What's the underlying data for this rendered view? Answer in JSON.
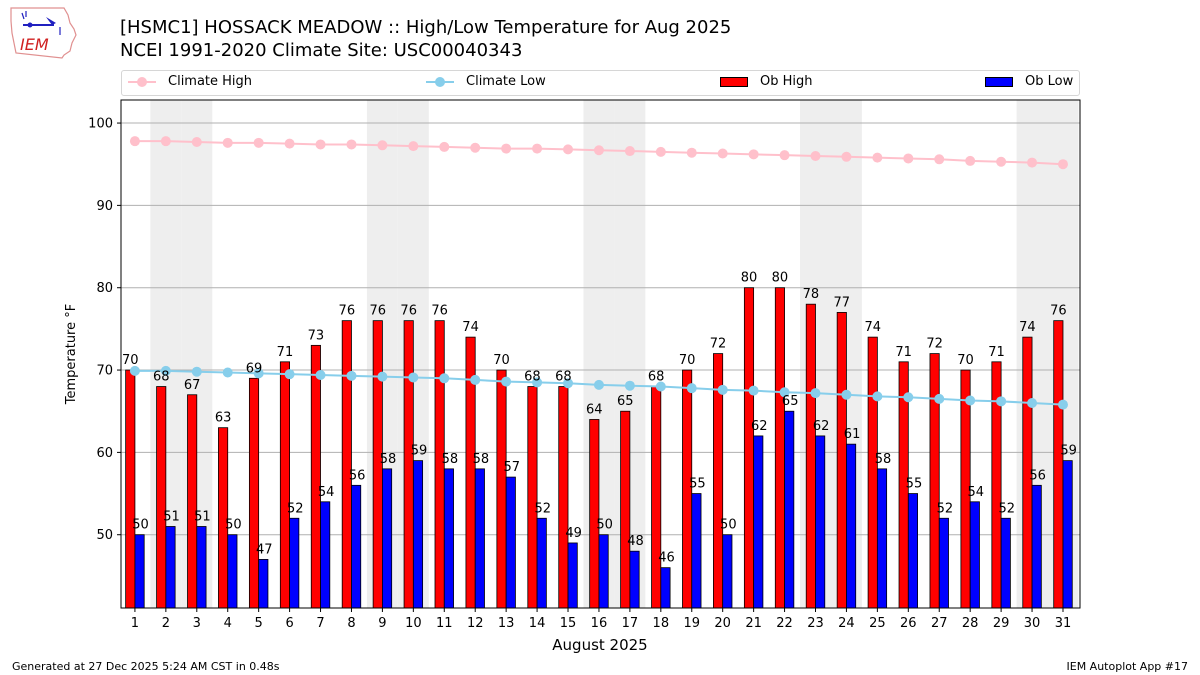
{
  "header": {
    "title_line1": "[HSMC1] HOSSACK MEADOW :: High/Low Temperature for Aug 2025",
    "title_line2": "NCEI 1991-2020 Climate Site: USC00040343",
    "logo_text": "IEM"
  },
  "legend": {
    "items": [
      {
        "label": "Climate High",
        "color": "#ffc0cb",
        "kind": "line-marker"
      },
      {
        "label": "Climate Low",
        "color": "#87ceeb",
        "kind": "line-marker"
      },
      {
        "label": "Ob High",
        "color": "#ff0000",
        "kind": "patch"
      },
      {
        "label": "Ob Low",
        "color": "#0000ff",
        "kind": "patch"
      }
    ]
  },
  "footer": {
    "generated": "Generated at 27 Dec 2025 5:24 AM CST in 0.48s",
    "app": "IEM Autoplot App #17"
  },
  "chart_data": {
    "type": "bar",
    "title": "[HSMC1] HOSSACK MEADOW :: High/Low Temperature for Aug 2025",
    "subtitle": "NCEI 1991-2020 Climate Site: USC00040343",
    "xlabel": "August 2025",
    "ylabel": "Temperature °F",
    "ylim": [
      41.1,
      102.8
    ],
    "yticks": [
      50,
      60,
      70,
      80,
      90,
      100
    ],
    "grid": "y",
    "legend_position": "top",
    "categories": [
      "1",
      "2",
      "3",
      "4",
      "5",
      "6",
      "7",
      "8",
      "9",
      "10",
      "11",
      "12",
      "13",
      "14",
      "15",
      "16",
      "17",
      "18",
      "19",
      "20",
      "21",
      "22",
      "23",
      "24",
      "25",
      "26",
      "27",
      "28",
      "29",
      "30",
      "31"
    ],
    "weekend_shaded_days": [
      2,
      3,
      9,
      10,
      16,
      17,
      23,
      24,
      30,
      31
    ],
    "series": [
      {
        "name": "Ob High",
        "type": "bar",
        "color": "#ff0000",
        "values": [
          70,
          68,
          67,
          63,
          69,
          71,
          73,
          76,
          76,
          76,
          76,
          74,
          70,
          68,
          68,
          64,
          65,
          68,
          70,
          72,
          80,
          80,
          78,
          77,
          74,
          71,
          72,
          70,
          71,
          74,
          76
        ]
      },
      {
        "name": "Ob Low",
        "type": "bar",
        "color": "#0000ff",
        "values": [
          50,
          51,
          51,
          50,
          47,
          52,
          54,
          56,
          58,
          59,
          58,
          58,
          57,
          52,
          49,
          50,
          48,
          46,
          55,
          50,
          62,
          65,
          62,
          61,
          58,
          55,
          52,
          54,
          52,
          56,
          59
        ]
      },
      {
        "name": "Climate High",
        "type": "line",
        "color": "#ffc0cb",
        "values": [
          97.8,
          97.8,
          97.7,
          97.6,
          97.6,
          97.5,
          97.4,
          97.4,
          97.3,
          97.2,
          97.1,
          97.0,
          96.9,
          96.9,
          96.8,
          96.7,
          96.6,
          96.5,
          96.4,
          96.3,
          96.2,
          96.1,
          96.0,
          95.9,
          95.8,
          95.7,
          95.6,
          95.4,
          95.3,
          95.2,
          95.0
        ]
      },
      {
        "name": "Climate Low",
        "type": "line",
        "color": "#87ceeb",
        "values": [
          69.9,
          69.9,
          69.8,
          69.7,
          69.6,
          69.5,
          69.4,
          69.3,
          69.2,
          69.1,
          69.0,
          68.8,
          68.6,
          68.5,
          68.4,
          68.2,
          68.1,
          68.0,
          67.8,
          67.6,
          67.5,
          67.3,
          67.2,
          67.0,
          66.8,
          66.7,
          66.5,
          66.3,
          66.2,
          66.0,
          65.8
        ]
      }
    ]
  }
}
